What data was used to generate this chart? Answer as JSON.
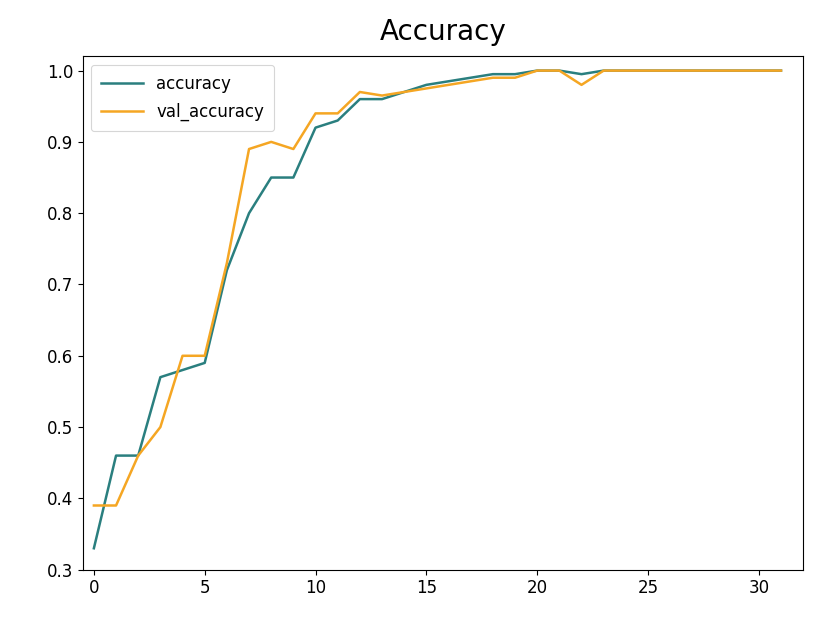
{
  "title": "Accuracy",
  "accuracy": [
    0.33,
    0.46,
    0.46,
    0.57,
    0.58,
    0.59,
    0.72,
    0.8,
    0.85,
    0.85,
    0.92,
    0.93,
    0.96,
    0.96,
    0.97,
    0.98,
    0.985,
    0.99,
    0.995,
    0.995,
    1.0,
    1.0,
    0.995,
    1.0,
    1.0,
    1.0,
    1.0,
    1.0,
    1.0,
    1.0,
    1.0,
    1.0
  ],
  "val_accuracy": [
    0.39,
    0.39,
    0.46,
    0.5,
    0.6,
    0.6,
    0.73,
    0.89,
    0.9,
    0.89,
    0.94,
    0.94,
    0.97,
    0.965,
    0.97,
    0.975,
    0.98,
    0.985,
    0.99,
    0.99,
    1.0,
    1.0,
    0.98,
    1.0,
    1.0,
    1.0,
    1.0,
    1.0,
    1.0,
    1.0,
    1.0,
    1.0
  ],
  "color_accuracy": "#2a7f7f",
  "color_val_accuracy": "#f5a623",
  "ylim": [
    0.3,
    1.02
  ],
  "yticks": [
    0.3,
    0.4,
    0.5,
    0.6,
    0.7,
    0.8,
    0.9,
    1.0
  ],
  "xlim": [
    -0.5,
    32
  ],
  "xticks": [
    0,
    5,
    10,
    15,
    20,
    25,
    30
  ],
  "title_fontsize": 20,
  "legend_fontsize": 12,
  "tick_fontsize": 12,
  "linewidth": 1.8,
  "background_color": "#ffffff"
}
